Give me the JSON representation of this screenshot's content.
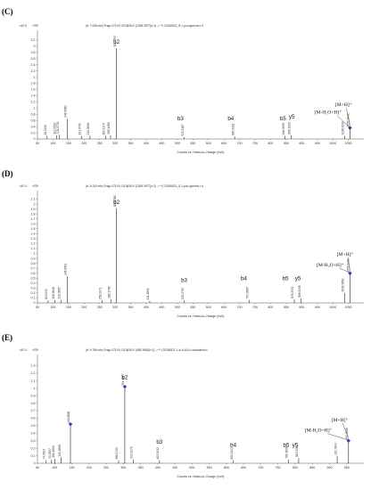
{
  "chart_data": [
    {
      "panel": "(C)",
      "type": "bar",
      "scale_label": "x10 5",
      "mode_label": "+ESI",
      "header": "(rt: 7.635 min) Frag=175.0V CID@30.0 (1055.3977[z=1] -> **) 20180821_R-1-pcu-tgrenne-r.d",
      "ylim": [
        0,
        3.4
      ],
      "yticks": [
        "0",
        "0.2",
        "0.4",
        "0.6",
        "0.8",
        "1",
        "1.2",
        "1.4",
        "1.6",
        "1.8",
        "2",
        "2.2",
        "2.4",
        "2.6",
        "2.8",
        "3",
        "3.2"
      ],
      "xlim": [
        50,
        1100
      ],
      "xticks": [
        50,
        100,
        150,
        200,
        250,
        300,
        350,
        400,
        450,
        500,
        550,
        600,
        650,
        700,
        750,
        800,
        850,
        900,
        950,
        1000,
        1050
      ],
      "xlabel": "Counts vs. Mass-to-Charge (m/z)",
      "peaks": [
        {
          "mz": 81.0,
          "y": 0.1,
          "label": "81.0222"
        },
        {
          "mz": 111.1,
          "y": 0.12,
          "label": "111.0523"
        },
        {
          "mz": 121.1,
          "y": 0.14,
          "label": "121.0733"
        },
        {
          "mz": 146.1,
          "y": 0.66,
          "label": "146.0860"
        },
        {
          "mz": 191.1,
          "y": 0.1,
          "label": "191.0749"
        },
        {
          "mz": 219.1,
          "y": 0.1,
          "label": "219.0818"
        },
        {
          "mz": 269.1,
          "y": 0.1,
          "label": "269.1173"
        },
        {
          "mz": 285.1,
          "y": 0.12,
          "label": "285.1380"
        },
        {
          "mz": 304.2,
          "y": 2.94,
          "label": "304.1597"
        },
        {
          "mz": 522.3,
          "y": 0.06,
          "label": "522.3167"
        },
        {
          "mz": 684.4,
          "y": 0.08,
          "label": "684.3961"
        },
        {
          "mz": 846.3,
          "y": 0.1,
          "label": "846.3238"
        },
        {
          "mz": 866.3,
          "y": 0.12,
          "label": "866.3250"
        },
        {
          "mz": 1038.3,
          "y": 0.1,
          "label": "1038.3230"
        },
        {
          "mz": 1055.4,
          "y": 0.36,
          "label": "1055.3941",
          "marker": true
        }
      ],
      "annotations": [
        {
          "text": "b2",
          "mz": 304.2,
          "y": 3.08
        },
        {
          "text": "b3",
          "mz": 510,
          "y": 0.6
        },
        {
          "text": "b4",
          "mz": 672,
          "y": 0.6
        },
        {
          "text": "b5",
          "mz": 840,
          "y": 0.6
        },
        {
          "text": "y5",
          "mz": 868,
          "y": 0.66
        },
        {
          "text": "[M-H₂O+H]⁺",
          "mz": 985,
          "y": 0.82
        },
        {
          "text": "[M+H]⁺",
          "mz": 1035,
          "y": 1.06
        }
      ]
    },
    {
      "panel": "(D)",
      "type": "bar",
      "scale_label": "x10 5",
      "mode_label": "+ESI",
      "header": "(rt: 8.243 min) Frag=175.0V CID@30.0 (1055.3977[z=1] -> **) 20180821_S-1-pcu-tgrenne-r.d",
      "ylim": [
        0,
        2.2
      ],
      "yticks": [
        "0",
        "0.1",
        "0.2",
        "0.3",
        "0.4",
        "0.5",
        "0.6",
        "0.7",
        "0.8",
        "0.9",
        "1",
        "1.1",
        "1.2",
        "1.3",
        "1.4",
        "1.5",
        "1.6",
        "1.7",
        "1.8",
        "1.9",
        "2",
        "2.1"
      ],
      "xlim": [
        50,
        1100
      ],
      "xticks": [
        50,
        100,
        150,
        200,
        250,
        300,
        350,
        400,
        450,
        500,
        550,
        600,
        650,
        700,
        750,
        800,
        850,
        900,
        950,
        1000,
        1050
      ],
      "xlabel": "Counts vs. Mass-to-Charge (m/z)",
      "peaks": [
        {
          "mz": 84.1,
          "y": 0.05,
          "label": "84.0443"
        },
        {
          "mz": 106.1,
          "y": 0.06,
          "label": "106.0648"
        },
        {
          "mz": 126.1,
          "y": 0.06,
          "label": "126.0065"
        },
        {
          "mz": 146.1,
          "y": 0.54,
          "label": "146.0811"
        },
        {
          "mz": 258.1,
          "y": 0.05,
          "label": "258.0971"
        },
        {
          "mz": 286.1,
          "y": 0.07,
          "label": "286.1786"
        },
        {
          "mz": 304.2,
          "y": 1.92,
          "label": "304.1580"
        },
        {
          "mz": 411.2,
          "y": 0.04,
          "label": "411.1891"
        },
        {
          "mz": 522.3,
          "y": 0.05,
          "label": "522.2787"
        },
        {
          "mz": 731.3,
          "y": 0.06,
          "label": "731.3065"
        },
        {
          "mz": 876.3,
          "y": 0.07,
          "label": "876.3332"
        },
        {
          "mz": 898.3,
          "y": 0.09,
          "label": "898.3296"
        },
        {
          "mz": 1038.4,
          "y": 0.2,
          "label": "1038.3861"
        },
        {
          "mz": 1055.4,
          "y": 0.6,
          "label": "1055.3909",
          "marker": true
        }
      ],
      "annotations": [
        {
          "text": "b2",
          "mz": 304.2,
          "y": 2.0
        },
        {
          "text": "b3",
          "mz": 522,
          "y": 0.42
        },
        {
          "text": "b4",
          "mz": 714,
          "y": 0.46
        },
        {
          "text": "b5",
          "mz": 848,
          "y": 0.46
        },
        {
          "text": "y5",
          "mz": 888,
          "y": 0.46
        },
        {
          "text": "[M-H₂O+H]⁺",
          "mz": 992,
          "y": 0.74
        },
        {
          "text": "[M+H]⁺",
          "mz": 1040,
          "y": 0.96
        }
      ]
    },
    {
      "panel": "(E)",
      "type": "bar",
      "scale_label": "x10 5",
      "mode_label": "+ESI",
      "header": "(rt: 6.766 min) Frag=175.0V CID@30.0 (955.3650[z=1] -> **) 20180821-1-lu-tl-A3-U-mulacama.d",
      "ylim": [
        0,
        1.4
      ],
      "yticks": [
        "0",
        "0.1",
        "0.2",
        "0.3",
        "0.4",
        "0.5",
        "0.6",
        "0.7",
        "0.8",
        "0.9",
        "1",
        "1.1",
        "1.2",
        "1.3"
      ],
      "xlim": [
        50,
        1000
      ],
      "xticks": [
        50,
        100,
        150,
        200,
        250,
        300,
        350,
        400,
        450,
        500,
        550,
        600,
        650,
        700,
        750,
        800,
        850,
        900,
        950
      ],
      "xlabel": "Counts vs. Mass-to-Charge (m/z)",
      "peaks": [
        {
          "mz": 74.1,
          "y": 0.04,
          "label": "74.0593"
        },
        {
          "mz": 91.1,
          "y": 0.05,
          "label": "91.0547"
        },
        {
          "mz": 101.1,
          "y": 0.06,
          "label": "101.0616"
        },
        {
          "mz": 119.1,
          "y": 0.08,
          "label": "119.0698"
        },
        {
          "mz": 146.1,
          "y": 0.52,
          "label": "146.0806",
          "marker": true
        },
        {
          "mz": 286.2,
          "y": 0.04,
          "label": "286.1729"
        },
        {
          "mz": 304.2,
          "y": 1.02,
          "label": "304.1577",
          "marker": true
        },
        {
          "mz": 329.1,
          "y": 0.05,
          "label": "329.1170"
        },
        {
          "mz": 405.2,
          "y": 0.04,
          "label": "405.2912"
        },
        {
          "mz": 620.3,
          "y": 0.04,
          "label": "620.2442"
        },
        {
          "mz": 780.3,
          "y": 0.05,
          "label": "780.3000"
        },
        {
          "mz": 810.3,
          "y": 0.07,
          "label": "810.3211"
        },
        {
          "mz": 922.3,
          "y": 0.1,
          "label": "922.3491"
        },
        {
          "mz": 955.4,
          "y": 0.3,
          "label": "955.3648",
          "marker": true
        }
      ],
      "annotations": [
        {
          "text": "b2",
          "mz": 304.2,
          "y": 1.12
        },
        {
          "text": "b3",
          "mz": 405,
          "y": 0.26
        },
        {
          "text": "b4",
          "mz": 620,
          "y": 0.22
        },
        {
          "text": "b5",
          "mz": 774,
          "y": 0.22
        },
        {
          "text": "y5",
          "mz": 800,
          "y": 0.22
        },
        {
          "text": "[M-H₂O+H]⁺",
          "mz": 868,
          "y": 0.42
        },
        {
          "text": "[M+H]⁺",
          "mz": 930,
          "y": 0.56
        }
      ]
    }
  ]
}
